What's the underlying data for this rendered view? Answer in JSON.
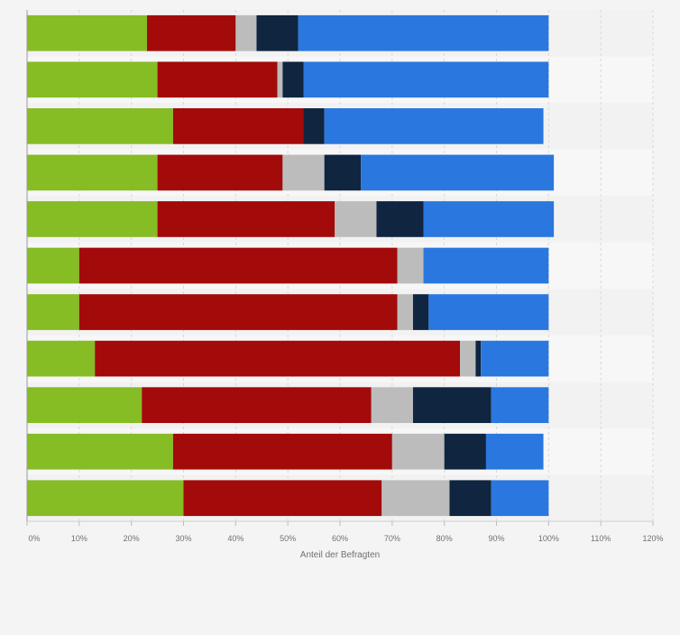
{
  "chart_data": {
    "type": "bar",
    "orientation": "horizontal",
    "stacked": true,
    "xlabel": "Anteil der Befragten",
    "xlim": [
      0,
      120
    ],
    "x_ticks": [
      "0%",
      "10%",
      "20%",
      "30%",
      "40%",
      "50%",
      "60%",
      "70%",
      "80%",
      "90%",
      "100%",
      "110%",
      "120%"
    ],
    "grid": true,
    "legend": "none",
    "series_colors": [
      "#86bc24",
      "#a30a0a",
      "#bcbcbc",
      "#0f2540",
      "#2a77df"
    ],
    "rows": [
      [
        23,
        17,
        4,
        8,
        48
      ],
      [
        25,
        23,
        1,
        4,
        47
      ],
      [
        28,
        25,
        0,
        4,
        42
      ],
      [
        25,
        24,
        8,
        7,
        37
      ],
      [
        25,
        34,
        8,
        9,
        25
      ],
      [
        10,
        61,
        5,
        0,
        24
      ],
      [
        10,
        61,
        3,
        3,
        23
      ],
      [
        13,
        70,
        3,
        1,
        13
      ],
      [
        22,
        44,
        8,
        15,
        11
      ],
      [
        28,
        42,
        10,
        8,
        11
      ],
      [
        30,
        38,
        13,
        8,
        11
      ]
    ]
  }
}
